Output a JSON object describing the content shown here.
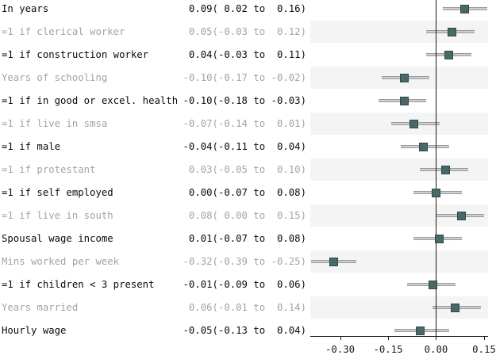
{
  "chart_data": {
    "type": "scatter",
    "variant": "forest-dot-whisker-plot",
    "title": "",
    "xlabel": "",
    "ylabel": "",
    "legend": null,
    "grid": false,
    "rows": [
      {
        "label": "In years",
        "estimate": "0.09( 0.02 to  0.16)",
        "coef": 0.09,
        "lo": 0.02,
        "hi": 0.16,
        "muted": false
      },
      {
        "label": "=1 if clerical worker",
        "estimate": "0.05(-0.03 to  0.12)",
        "coef": 0.05,
        "lo": -0.03,
        "hi": 0.12,
        "muted": true
      },
      {
        "label": "=1 if construction worker",
        "estimate": "0.04(-0.03 to  0.11)",
        "coef": 0.04,
        "lo": -0.03,
        "hi": 0.11,
        "muted": false
      },
      {
        "label": "Years of schooling",
        "estimate": "-0.10(-0.17 to -0.02)",
        "coef": -0.1,
        "lo": -0.17,
        "hi": -0.02,
        "muted": true
      },
      {
        "label": "=1 if in good or excel. health",
        "estimate": "-0.10(-0.18 to -0.03)",
        "coef": -0.1,
        "lo": -0.18,
        "hi": -0.03,
        "muted": false
      },
      {
        "label": "=1 if live in smsa",
        "estimate": "-0.07(-0.14 to  0.01)",
        "coef": -0.07,
        "lo": -0.14,
        "hi": 0.01,
        "muted": true
      },
      {
        "label": "=1 if male",
        "estimate": "-0.04(-0.11 to  0.04)",
        "coef": -0.04,
        "lo": -0.11,
        "hi": 0.04,
        "muted": false
      },
      {
        "label": "=1 if protestant",
        "estimate": "0.03(-0.05 to  0.10)",
        "coef": 0.03,
        "lo": -0.05,
        "hi": 0.1,
        "muted": true
      },
      {
        "label": "=1 if self employed",
        "estimate": "0.00(-0.07 to  0.08)",
        "coef": 0.0,
        "lo": -0.07,
        "hi": 0.08,
        "muted": false
      },
      {
        "label": "=1 if live in south",
        "estimate": "0.08( 0.00 to  0.15)",
        "coef": 0.08,
        "lo": 0.0,
        "hi": 0.15,
        "muted": true
      },
      {
        "label": "Spousal wage income",
        "estimate": "0.01(-0.07 to  0.08)",
        "coef": 0.01,
        "lo": -0.07,
        "hi": 0.08,
        "muted": false
      },
      {
        "label": "Mins worked per week",
        "estimate": "-0.32(-0.39 to -0.25)",
        "coef": -0.32,
        "lo": -0.39,
        "hi": -0.25,
        "muted": true
      },
      {
        "label": "=1 if children < 3 present",
        "estimate": "-0.01(-0.09 to  0.06)",
        "coef": -0.01,
        "lo": -0.09,
        "hi": 0.06,
        "muted": false
      },
      {
        "label": "Years married",
        "estimate": "0.06(-0.01 to  0.14)",
        "coef": 0.06,
        "lo": -0.01,
        "hi": 0.14,
        "muted": true
      },
      {
        "label": "Hourly wage",
        "estimate": "-0.05(-0.13 to  0.04)",
        "coef": -0.05,
        "lo": -0.13,
        "hi": 0.04,
        "muted": false
      }
    ],
    "x_axis": {
      "xlim": [
        -0.393,
        0.1625
      ],
      "ticks": [
        -0.3,
        -0.15,
        0.0,
        0.15
      ],
      "tick_labels": [
        "-0.30",
        "-0.15",
        "0.00",
        "0.15"
      ],
      "zero_line_at": 0
    },
    "colors": {
      "text": "#0a0a0a",
      "muted_text": "#a3a3a3",
      "band": "#f4f4f4",
      "whisker_edge": "#9a9a9a",
      "whisker_core": "#cfcfcf",
      "marker_fill": "#4a6868",
      "marker_border": "#2e4848",
      "zero_line": "#1a1a1a",
      "axis": "#1a1a1a"
    }
  }
}
